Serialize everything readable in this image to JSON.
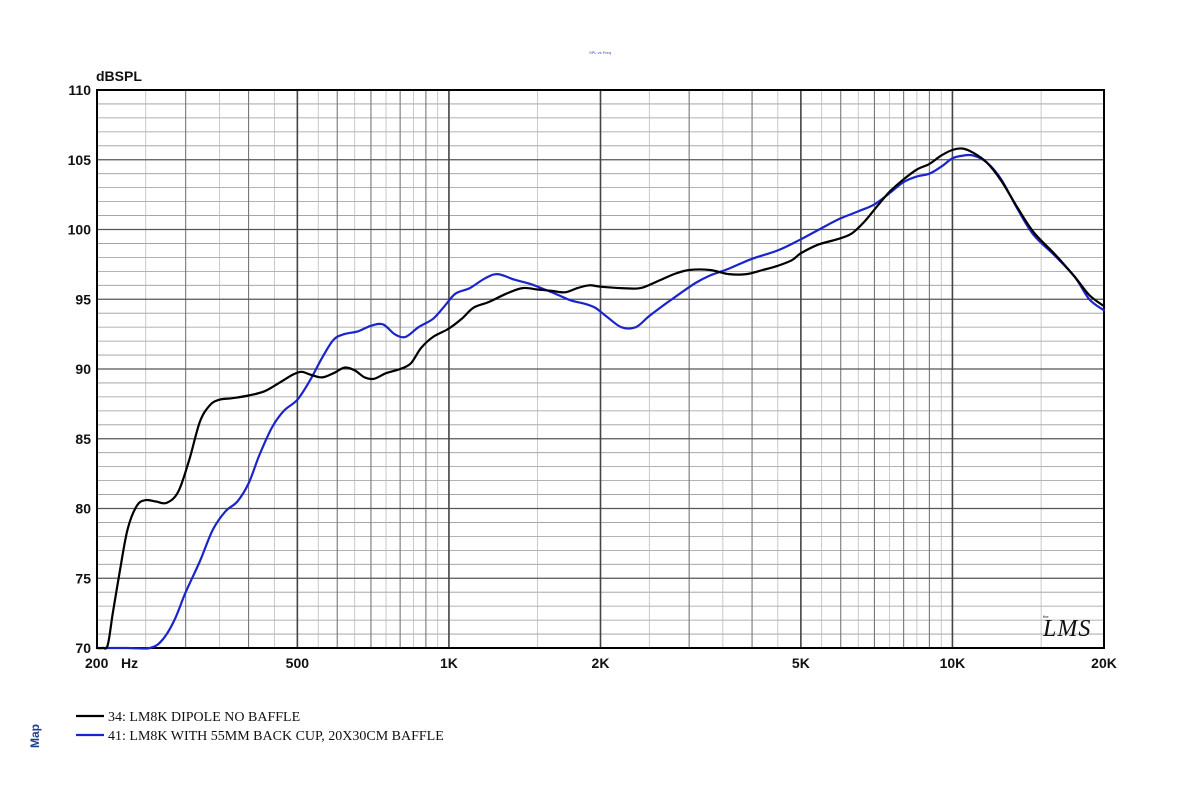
{
  "chart_data": {
    "type": "line",
    "title": "SPL vs Freq",
    "ylabel": "dBSPL",
    "xlabel": "Hz",
    "x_scale": "log",
    "xlim": [
      200,
      20000
    ],
    "ylim": [
      70,
      110
    ],
    "grid": true,
    "y_ticks": [
      {
        "value": 110,
        "label": "110"
      },
      {
        "value": 105,
        "label": "105"
      },
      {
        "value": 100,
        "label": "100"
      },
      {
        "value": 95,
        "label": "95"
      },
      {
        "value": 90,
        "label": "90"
      },
      {
        "value": 85,
        "label": "85"
      },
      {
        "value": 80,
        "label": "80"
      },
      {
        "value": 75,
        "label": "75"
      },
      {
        "value": 70,
        "label": "70"
      }
    ],
    "x_ticks": [
      {
        "value": 200,
        "label": "200"
      },
      {
        "value": 500,
        "label": "500"
      },
      {
        "value": 1000,
        "label": "1K"
      },
      {
        "value": 2000,
        "label": "2K"
      },
      {
        "value": 5000,
        "label": "5K"
      },
      {
        "value": 10000,
        "label": "10K"
      },
      {
        "value": 20000,
        "label": "20K"
      }
    ],
    "legend_position": "bottom-left",
    "series": [
      {
        "name": "34: LM8K DIPOLE NO BAFFLE",
        "color": "#000000",
        "points": [
          [
            200,
            70
          ],
          [
            205,
            70
          ],
          [
            210,
            70.2
          ],
          [
            215,
            72.5
          ],
          [
            222,
            75.5
          ],
          [
            230,
            78.5
          ],
          [
            240,
            80.2
          ],
          [
            250,
            80.6
          ],
          [
            262,
            80.5
          ],
          [
            275,
            80.4
          ],
          [
            290,
            81.2
          ],
          [
            305,
            83.5
          ],
          [
            320,
            86.2
          ],
          [
            335,
            87.4
          ],
          [
            350,
            87.8
          ],
          [
            370,
            87.9
          ],
          [
            400,
            88.1
          ],
          [
            430,
            88.4
          ],
          [
            460,
            89.0
          ],
          [
            490,
            89.6
          ],
          [
            510,
            89.8
          ],
          [
            530,
            89.6
          ],
          [
            560,
            89.4
          ],
          [
            590,
            89.7
          ],
          [
            620,
            90.1
          ],
          [
            650,
            89.9
          ],
          [
            680,
            89.4
          ],
          [
            710,
            89.3
          ],
          [
            750,
            89.7
          ],
          [
            800,
            90.0
          ],
          [
            840,
            90.4
          ],
          [
            880,
            91.5
          ],
          [
            930,
            92.3
          ],
          [
            1000,
            92.9
          ],
          [
            1060,
            93.6
          ],
          [
            1120,
            94.4
          ],
          [
            1200,
            94.8
          ],
          [
            1300,
            95.4
          ],
          [
            1400,
            95.8
          ],
          [
            1500,
            95.7
          ],
          [
            1600,
            95.6
          ],
          [
            1700,
            95.5
          ],
          [
            1800,
            95.8
          ],
          [
            1900,
            96.0
          ],
          [
            2000,
            95.9
          ],
          [
            2200,
            95.8
          ],
          [
            2400,
            95.8
          ],
          [
            2600,
            96.3
          ],
          [
            2800,
            96.8
          ],
          [
            3000,
            97.1
          ],
          [
            3300,
            97.1
          ],
          [
            3600,
            96.8
          ],
          [
            3900,
            96.8
          ],
          [
            4200,
            97.1
          ],
          [
            4500,
            97.4
          ],
          [
            4800,
            97.8
          ],
          [
            5000,
            98.3
          ],
          [
            5400,
            98.9
          ],
          [
            5900,
            99.3
          ],
          [
            6300,
            99.7
          ],
          [
            6700,
            100.6
          ],
          [
            7100,
            101.7
          ],
          [
            7500,
            102.7
          ],
          [
            8000,
            103.6
          ],
          [
            8500,
            104.3
          ],
          [
            9000,
            104.7
          ],
          [
            9500,
            105.3
          ],
          [
            10000,
            105.7
          ],
          [
            10500,
            105.8
          ],
          [
            11000,
            105.5
          ],
          [
            11700,
            104.8
          ],
          [
            12500,
            103.5
          ],
          [
            13500,
            101.5
          ],
          [
            14500,
            99.8
          ],
          [
            16000,
            98.2
          ],
          [
            17500,
            96.6
          ],
          [
            18700,
            95.3
          ],
          [
            20000,
            94.5
          ]
        ]
      },
      {
        "name": "41: LM8K WITH 55MM BACK CUP, 20X30CM BAFFLE",
        "color": "#1a24cc",
        "points": [
          [
            200,
            70
          ],
          [
            230,
            70
          ],
          [
            255,
            70
          ],
          [
            270,
            70.6
          ],
          [
            285,
            72
          ],
          [
            300,
            74
          ],
          [
            320,
            76.2
          ],
          [
            340,
            78.5
          ],
          [
            360,
            79.8
          ],
          [
            380,
            80.5
          ],
          [
            400,
            81.8
          ],
          [
            420,
            83.8
          ],
          [
            445,
            85.8
          ],
          [
            470,
            87.0
          ],
          [
            500,
            87.8
          ],
          [
            530,
            89.2
          ],
          [
            560,
            90.8
          ],
          [
            590,
            92.1
          ],
          [
            620,
            92.5
          ],
          [
            660,
            92.7
          ],
          [
            700,
            93.1
          ],
          [
            740,
            93.2
          ],
          [
            780,
            92.5
          ],
          [
            820,
            92.3
          ],
          [
            870,
            93.0
          ],
          [
            930,
            93.6
          ],
          [
            980,
            94.5
          ],
          [
            1030,
            95.4
          ],
          [
            1100,
            95.8
          ],
          [
            1180,
            96.5
          ],
          [
            1250,
            96.8
          ],
          [
            1350,
            96.4
          ],
          [
            1450,
            96.1
          ],
          [
            1550,
            95.7
          ],
          [
            1650,
            95.3
          ],
          [
            1750,
            94.9
          ],
          [
            1850,
            94.7
          ],
          [
            1950,
            94.4
          ],
          [
            2050,
            93.8
          ],
          [
            2200,
            93.0
          ],
          [
            2350,
            93.0
          ],
          [
            2500,
            93.8
          ],
          [
            2700,
            94.7
          ],
          [
            2900,
            95.5
          ],
          [
            3100,
            96.2
          ],
          [
            3300,
            96.7
          ],
          [
            3600,
            97.2
          ],
          [
            4000,
            97.9
          ],
          [
            4500,
            98.5
          ],
          [
            5000,
            99.3
          ],
          [
            5500,
            100.1
          ],
          [
            6000,
            100.8
          ],
          [
            6500,
            101.3
          ],
          [
            7000,
            101.8
          ],
          [
            7500,
            102.6
          ],
          [
            8000,
            103.4
          ],
          [
            8500,
            103.8
          ],
          [
            9000,
            104.0
          ],
          [
            9500,
            104.5
          ],
          [
            10000,
            105.1
          ],
          [
            10500,
            105.3
          ],
          [
            11000,
            105.3
          ],
          [
            11700,
            104.8
          ],
          [
            12500,
            103.6
          ],
          [
            13500,
            101.4
          ],
          [
            14500,
            99.6
          ],
          [
            16000,
            98.1
          ],
          [
            17500,
            96.6
          ],
          [
            18700,
            95.0
          ],
          [
            20000,
            94.2
          ]
        ]
      }
    ]
  },
  "brand": {
    "text": "LMS",
    "small": "the"
  },
  "side_label": "Map"
}
